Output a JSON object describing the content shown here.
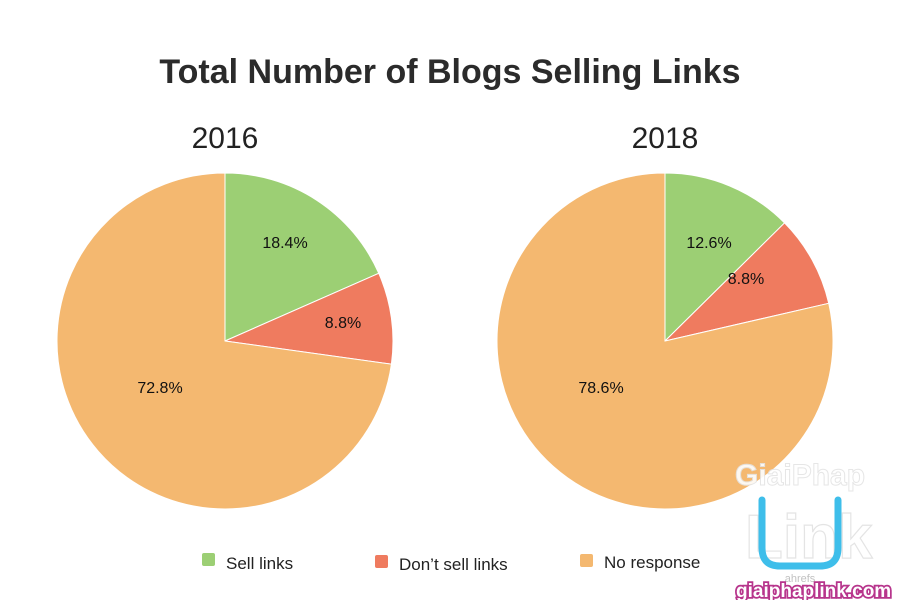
{
  "chart_data": {
    "type": "pie",
    "title": "Total Number of Blogs Selling Links",
    "categories": [
      "Sell links",
      "Don’t sell links",
      "No response"
    ],
    "colors": [
      "#9ccf74",
      "#ef7b5f",
      "#f4b870"
    ],
    "legend_position": "bottom",
    "pies": [
      {
        "name": "2016",
        "values": [
          18.4,
          8.8,
          72.8
        ],
        "labels": [
          "18.4%",
          "8.8%",
          "72.8%"
        ]
      },
      {
        "name": "2018",
        "values": [
          12.6,
          8.8,
          78.6
        ],
        "labels": [
          "12.6%",
          "8.8%",
          "78.6%"
        ]
      }
    ]
  },
  "watermark": {
    "line1": "GiaiPhap",
    "line2": "Link",
    "site": "giaiphaplink.com",
    "small": "ahrefs"
  }
}
